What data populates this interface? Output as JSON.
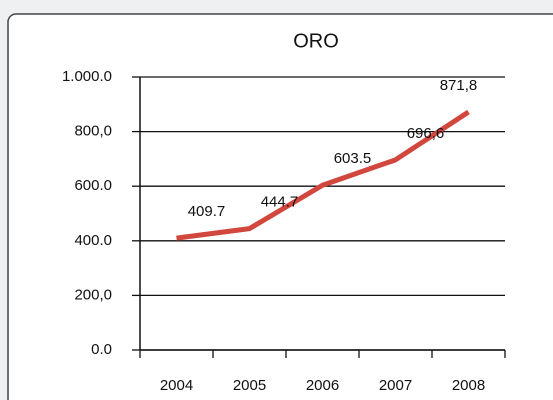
{
  "chart_data": {
    "type": "line",
    "title": "ORO",
    "categories": [
      "2004",
      "2005",
      "2006",
      "2007",
      "2008"
    ],
    "series": [
      {
        "name": "ORO",
        "color": "#d2473d",
        "values": [
          409.7,
          444.7,
          603.5,
          696.6,
          871.8
        ],
        "value_labels": [
          "409.7",
          "444.7",
          "603.5",
          "696,6",
          "871,8"
        ]
      }
    ],
    "ylim": [
      0,
      1000
    ],
    "yticks": [
      {
        "value": 0,
        "label": "0.0"
      },
      {
        "value": 200,
        "label": "200,0"
      },
      {
        "value": 400,
        "label": "400.0"
      },
      {
        "value": 600,
        "label": "600.0"
      },
      {
        "value": 800,
        "label": "800,0"
      },
      {
        "value": 1000,
        "label": "1.000.0"
      }
    ],
    "grid": true
  }
}
